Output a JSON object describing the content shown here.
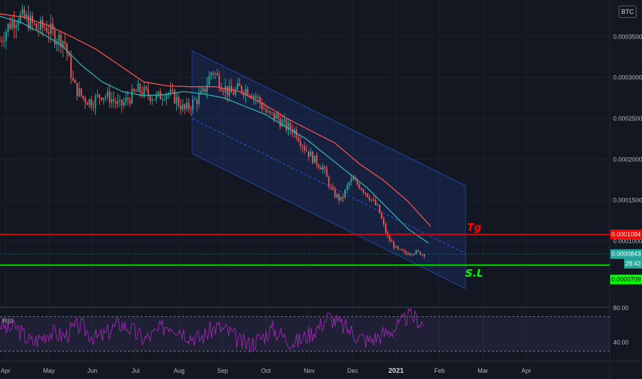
{
  "currency": "BTC",
  "chart_data": [
    {
      "type": "line",
      "series": [
        {
          "kind": "candlestick",
          "close": [
            0.000345,
            0.000365,
            0.000375,
            0.00037,
            0.00036,
            0.000362,
            0.00035,
            0.000345,
            0.00029,
            0.000275,
            0.00027,
            0.00028,
            0.000275,
            0.000265,
            0.000275,
            0.000285,
            0.00028,
            0.000275,
            0.000283,
            0.000275,
            0.00026,
            0.00027,
            0.00028,
            0.00031,
            0.000292,
            0.00028,
            0.000287,
            0.000285,
            0.000273,
            0.000255,
            0.000252,
            0.00024,
            0.000235,
            0.000215,
            0.0002,
            0.00019,
            0.00016,
            0.00015,
            0.000175,
            0.000168,
            0.000155,
            0.00014,
            0.000105,
            9e-05,
            8.5e-05,
            8.7e-05,
            8.4e-05
          ]
        },
        {
          "kind": "moving-average-fast",
          "values": [
            0.000375,
            0.000368,
            0.000355,
            0.00034,
            0.000315,
            0.000295,
            0.000283,
            0.000278,
            0.000279,
            0.000283,
            0.00028,
            0.000275,
            0.000265,
            0.000255,
            0.00024,
            0.000225,
            0.000205,
            0.000185,
            0.000165,
            0.00014,
            0.000115,
            9.75e-05
          ]
        },
        {
          "kind": "moving-average-slow",
          "values": [
            0.000378,
            0.000374,
            0.000364,
            0.00035,
            0.000335,
            0.000315,
            0.000295,
            0.00029,
            0.000289,
            0.000289,
            0.000283,
            0.000268,
            0.00025,
            0.000235,
            0.00022,
            0.000195,
            0.000175,
            0.00015,
            0.000118
          ]
        }
      ],
      "price_scale": {
        "ticks": [
          "0.0003500",
          "0.0003000",
          "0.0002500",
          "0.0002000",
          "0.0001500",
          "0.0001000"
        ],
        "tick_values": [
          0.00035,
          0.0003,
          0.00025,
          0.0002,
          0.00015,
          0.0001
        ],
        "ylim": [
          2e-05,
          0.000395
        ]
      },
      "time_axis": [
        "Apr",
        "May",
        "Jun",
        "Jul",
        "Aug",
        "Sep",
        "Oct",
        "Nov",
        "Dec",
        "2021",
        "Feb",
        "Mar",
        "Apr"
      ],
      "regression_channel": {
        "start": {
          "month": 4.3,
          "value": 0.00025
        },
        "end": {
          "month": 10.6,
          "value": 8.5e-05
        },
        "upper_offset": 8.3e-05,
        "lower_offset": 4.3e-05
      },
      "levels": [
        {
          "name": "Tg",
          "value": 0.0001084,
          "label": "0.0001084",
          "color": "#ff0000"
        },
        {
          "name": "S.L",
          "value": 7.09e-05,
          "label": "0.0000709",
          "color": "#00ff00"
        }
      ],
      "last_price": {
        "label": "0.0000843",
        "value": 8.43e-05,
        "countdown": "28:42"
      },
      "colors": {
        "moving_average_fast": "#36b6b0",
        "moving_average_slow": "#ff5252",
        "candles_up": "#26a69a",
        "candles_down": "#ef5350",
        "channel": "#2962ff"
      }
    },
    {
      "type": "line",
      "series": [
        {
          "name": "RSI",
          "values": [
            62,
            55,
            58,
            48,
            40,
            45,
            52,
            50,
            47,
            55,
            60,
            52,
            45,
            48,
            56,
            62,
            58,
            50,
            44,
            48,
            55,
            62,
            58,
            52,
            47,
            45,
            52,
            58,
            55,
            50,
            40,
            38,
            42,
            48,
            56,
            50,
            43,
            40,
            46,
            52,
            60,
            70,
            64,
            58,
            52,
            46,
            42,
            46,
            50,
            55,
            60,
            72,
            68,
            60
          ]
        }
      ],
      "ylim": [
        20,
        80
      ],
      "tick_labels": [
        "80.00",
        "40.00"
      ],
      "bands": [
        70,
        30
      ],
      "colors": {
        "line": "#9c27b0",
        "band_fill": "#7e57c2"
      }
    }
  ]
}
